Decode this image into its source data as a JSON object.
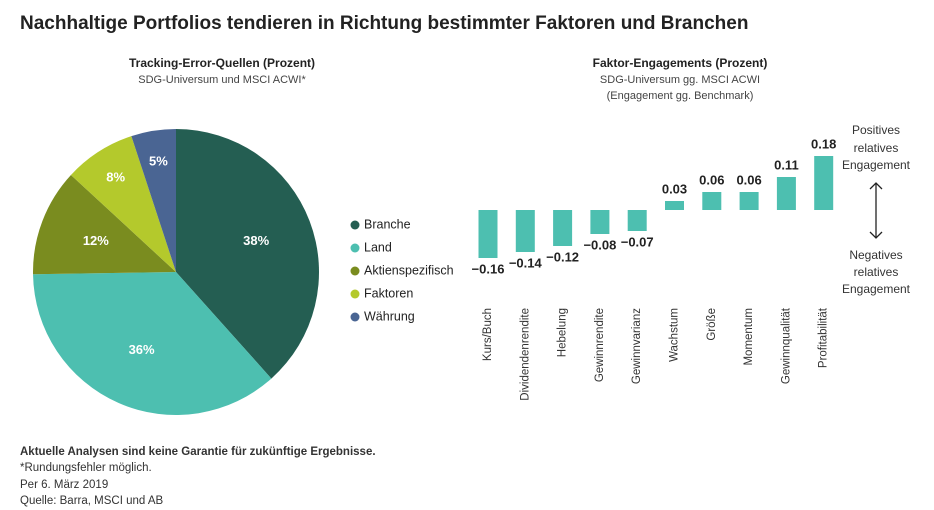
{
  "title": "Nachhaltige Portfolios tendieren in Richtung bestimmter Faktoren und Branchen",
  "chart_data": [
    {
      "type": "pie",
      "title": "Tracking-Error-Quellen (Prozent)",
      "subtitle": "SDG-Universum und MSCI ACWI*",
      "categories": [
        "Branche",
        "Land",
        "Aktienspezifisch",
        "Faktoren",
        "Währung"
      ],
      "values": [
        38,
        36,
        12,
        8,
        5
      ],
      "value_labels": [
        "38%",
        "36%",
        "12%",
        "8%",
        "5%"
      ],
      "colors": [
        "#245e52",
        "#4dbfb0",
        "#7a8c1f",
        "#b4c92c",
        "#4a6593"
      ]
    },
    {
      "type": "bar",
      "title": "Faktor-Engagements (Prozent)",
      "subtitle": [
        "SDG-Universum gg. MSCI ACWI",
        "(Engagement gg. Benchmark)"
      ],
      "categories": [
        "Kurs/Buch",
        "Dividendenrendite",
        "Hebelung",
        "Gewinnrendite",
        "Gewinnvarianz",
        "Wachstum",
        "Größe",
        "Momentum",
        "Gewinnqualität",
        "Profitabilität"
      ],
      "values": [
        -0.16,
        -0.14,
        -0.12,
        -0.08,
        -0.07,
        0.03,
        0.06,
        0.06,
        0.11,
        0.18
      ],
      "value_labels": [
        "−0.16",
        "−0.14",
        "−0.12",
        "−0.08",
        "−0.07",
        "0.03",
        "0.06",
        "0.06",
        "0.11",
        "0.18"
      ],
      "color": "#4dbfb0",
      "annotations": [
        [
          "Positives",
          "relatives",
          "Engagement"
        ],
        [
          "Negatives",
          "relatives",
          "Engagement"
        ]
      ]
    }
  ],
  "footer": {
    "disclaimer": "Aktuelle Analysen sind keine Garantie für zukünftige Ergebnisse.",
    "notes": [
      "*Rundungsfehler möglich.",
      "Per 6. März 2019",
      "Quelle: Barra, MSCI und AB"
    ]
  }
}
